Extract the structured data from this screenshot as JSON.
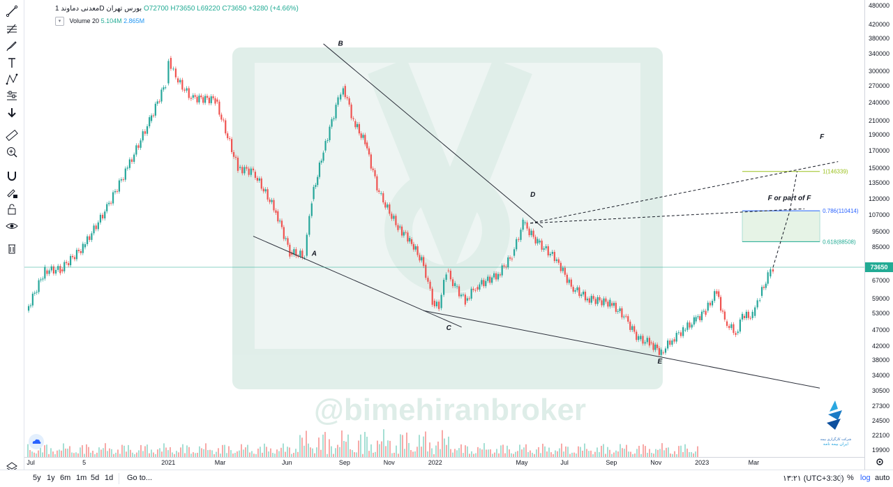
{
  "legend": {
    "symbol": "معدنی دماوند",
    "interval": "1D",
    "exchange": "بورس تهران",
    "open": "O72700",
    "high": "H73650",
    "low": "L69220",
    "close": "C73650",
    "change": "+3280 (+4.66%)"
  },
  "volume_legend": {
    "label": "Volume 20",
    "value1": "5.104M",
    "value2": "2.865M"
  },
  "watermark": "@bimehiranbroker",
  "price_axis": [
    "480000",
    "420000",
    "380000",
    "340000",
    "300000",
    "270000",
    "240000",
    "210000",
    "190000",
    "170000",
    "150000",
    "135000",
    "120000",
    "107000",
    "95000",
    "85000",
    "73650",
    "67000",
    "59000",
    "53000",
    "47000",
    "42000",
    "38000",
    "34000",
    "30500",
    "27300",
    "24500",
    "22100",
    "19900"
  ],
  "last_price": "73650",
  "time_axis": [
    "Jul",
    "5",
    "2021",
    "Mar",
    "Jun",
    "Sep",
    "Nov",
    "2022",
    "May",
    "Jul",
    "Sep",
    "Nov",
    "2023",
    "Mar"
  ],
  "bottom_bar": {
    "ranges": [
      "5y",
      "1y",
      "6m",
      "1m",
      "5d",
      "1d"
    ],
    "goto": "Go to...",
    "time": "۱۳:۲۱ (UTC+3:30)",
    "percent": "%",
    "log": "log",
    "auto": "auto"
  },
  "logo_text": [
    "شرکت کارگزاری بیمه",
    "ایران بیمه نامه"
  ],
  "chart_data": {
    "type": "candlestick",
    "y_scale": "log",
    "ylim": [
      19900,
      480000
    ],
    "last_close": 73650,
    "points": [
      [
        "2020-06-25",
        54000
      ],
      [
        "2020-07-20",
        72000
      ],
      [
        "2020-08-10",
        72500
      ],
      [
        "2020-09-10",
        85000
      ],
      [
        "2020-10-10",
        110000
      ],
      [
        "2020-11-10",
        150000
      ],
      [
        "2020-12-10",
        210000
      ],
      [
        "2021-01-01",
        275000
      ],
      [
        "2021-01-05",
        330000
      ],
      [
        "2021-01-15",
        285000
      ],
      [
        "2021-02-05",
        248000
      ],
      [
        "2021-03-10",
        245000
      ],
      [
        "2021-04-10",
        150000
      ],
      [
        "2021-05-01",
        146000
      ],
      [
        "2021-06-01",
        110000
      ],
      [
        "2021-06-20",
        82000
      ],
      [
        "2021-07-10",
        80000
      ],
      [
        "2021-07-20",
        120000
      ],
      [
        "2021-08-05",
        170000
      ],
      [
        "2021-08-25",
        245000
      ],
      [
        "2021-09-01",
        270000
      ],
      [
        "2021-09-15",
        210000
      ],
      [
        "2021-10-01",
        180000
      ],
      [
        "2021-10-20",
        125000
      ],
      [
        "2021-11-15",
        98000
      ],
      [
        "2021-12-01",
        90000
      ],
      [
        "2021-12-20",
        75000
      ],
      [
        "2022-01-01",
        58000
      ],
      [
        "2022-01-10",
        55000
      ],
      [
        "2022-01-20",
        72000
      ],
      [
        "2022-02-01",
        64000
      ],
      [
        "2022-02-15",
        58000
      ],
      [
        "2022-03-01",
        64000
      ],
      [
        "2022-04-01",
        70000
      ],
      [
        "2022-04-20",
        80000
      ],
      [
        "2022-05-05",
        101000
      ],
      [
        "2022-05-25",
        88000
      ],
      [
        "2022-06-20",
        78000
      ],
      [
        "2022-07-10",
        64000
      ],
      [
        "2022-08-01",
        59000
      ],
      [
        "2022-09-01",
        57000
      ],
      [
        "2022-09-20",
        52000
      ],
      [
        "2022-10-10",
        44000
      ],
      [
        "2022-10-25",
        43000
      ],
      [
        "2022-11-10",
        40000
      ],
      [
        "2022-11-25",
        44000
      ],
      [
        "2022-12-10",
        47000
      ],
      [
        "2022-12-25",
        50000
      ],
      [
        "2023-01-10",
        54000
      ],
      [
        "2023-01-25",
        62000
      ],
      [
        "2023-02-05",
        50000
      ],
      [
        "2023-02-20",
        46000
      ],
      [
        "2023-03-01",
        52000
      ],
      [
        "2023-03-15",
        52000
      ],
      [
        "2023-03-25",
        60000
      ],
      [
        "2023-04-05",
        69000
      ],
      [
        "2023-04-12",
        73650
      ]
    ],
    "annotations": {
      "wave_labels": [
        {
          "text": "A",
          "date": "2021-07-20",
          "price": 80000
        },
        {
          "text": "B",
          "date": "2021-08-25",
          "price": 360000
        },
        {
          "text": "C",
          "date": "2022-01-20",
          "price": 47000
        },
        {
          "text": "D",
          "date": "2022-05-15",
          "price": 122000
        },
        {
          "text": "E",
          "date": "2022-11-05",
          "price": 37000
        },
        {
          "text": "F or part of F",
          "date": "2023-04-05",
          "price": 119000
        },
        {
          "text": "F",
          "date": "2023-06-15",
          "price": 185000
        }
      ],
      "fib_levels": [
        {
          "label": "1(146339)",
          "value": 146339,
          "color": "#9ac01c"
        },
        {
          "label": "0.786(110414)",
          "value": 110414,
          "color": "#2962ff"
        },
        {
          "label": "0.618(88508)",
          "value": 88508,
          "color": "#22ab94"
        }
      ],
      "trendlines": [
        {
          "from": [
            "2021-08-05",
            365000
          ],
          "to": [
            "2022-06-01",
            98000
          ]
        },
        {
          "from": [
            "2021-05-01",
            92000
          ],
          "to": [
            "2022-02-10",
            48000
          ]
        },
        {
          "from": [
            "2021-12-20",
            54000
          ],
          "to": [
            "2023-06-15",
            31000
          ]
        }
      ],
      "projections": [
        {
          "from": [
            "2022-05-15",
            101000
          ],
          "to": [
            "2023-07-10",
            157000
          ]
        },
        {
          "from": [
            "2022-05-15",
            101000
          ],
          "to": [
            "2023-05-25",
            112000
          ]
        },
        {
          "from": [
            "2023-04-12",
            73650
          ],
          "to": [
            "2023-05-05",
            110414
          ]
        },
        {
          "from": [
            "2023-05-05",
            110414
          ],
          "to": [
            "2023-05-15",
            146339
          ]
        }
      ]
    }
  }
}
